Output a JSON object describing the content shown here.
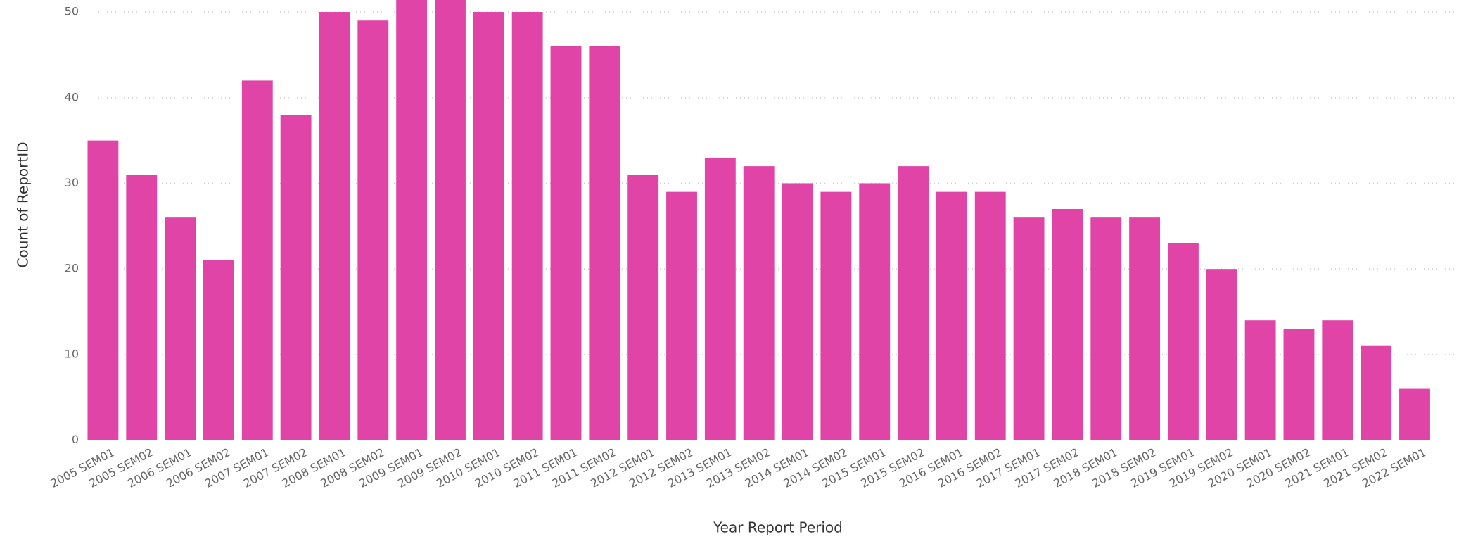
{
  "chart_data": {
    "type": "bar",
    "x_label": "Year Report Period",
    "y_label": "Count of ReportID",
    "categories": [
      "2005 SEM01",
      "2005 SEM02",
      "2006 SEM01",
      "2006 SEM02",
      "2007 SEM01",
      "2007 SEM02",
      "2008 SEM01",
      "2008 SEM02",
      "2009 SEM01",
      "2009 SEM02",
      "2010 SEM01",
      "2010 SEM02",
      "2011 SEM01",
      "2011 SEM02",
      "2012 SEM01",
      "2012 SEM02",
      "2013 SEM01",
      "2013 SEM02",
      "2014 SEM01",
      "2014 SEM02",
      "2015 SEM01",
      "2015 SEM02",
      "2016 SEM01",
      "2016 SEM02",
      "2017 SEM01",
      "2017 SEM02",
      "2018 SEM01",
      "2018 SEM02",
      "2019 SEM01",
      "2019 SEM02",
      "2020 SEM01",
      "2020 SEM02",
      "2021 SEM01",
      "2021 SEM02",
      "2022 SEM01"
    ],
    "values": [
      35,
      31,
      26,
      21,
      42,
      38,
      50,
      49,
      53,
      53,
      50,
      50,
      46,
      46,
      31,
      29,
      33,
      32,
      30,
      29,
      30,
      32,
      29,
      29,
      26,
      27,
      26,
      26,
      23,
      20,
      14,
      13,
      14,
      11,
      6
    ],
    "color": "#e044a7",
    "ylim": [
      0,
      51.4
    ],
    "yticks": [
      0,
      10,
      20,
      30,
      40,
      50
    ],
    "grid": true
  }
}
